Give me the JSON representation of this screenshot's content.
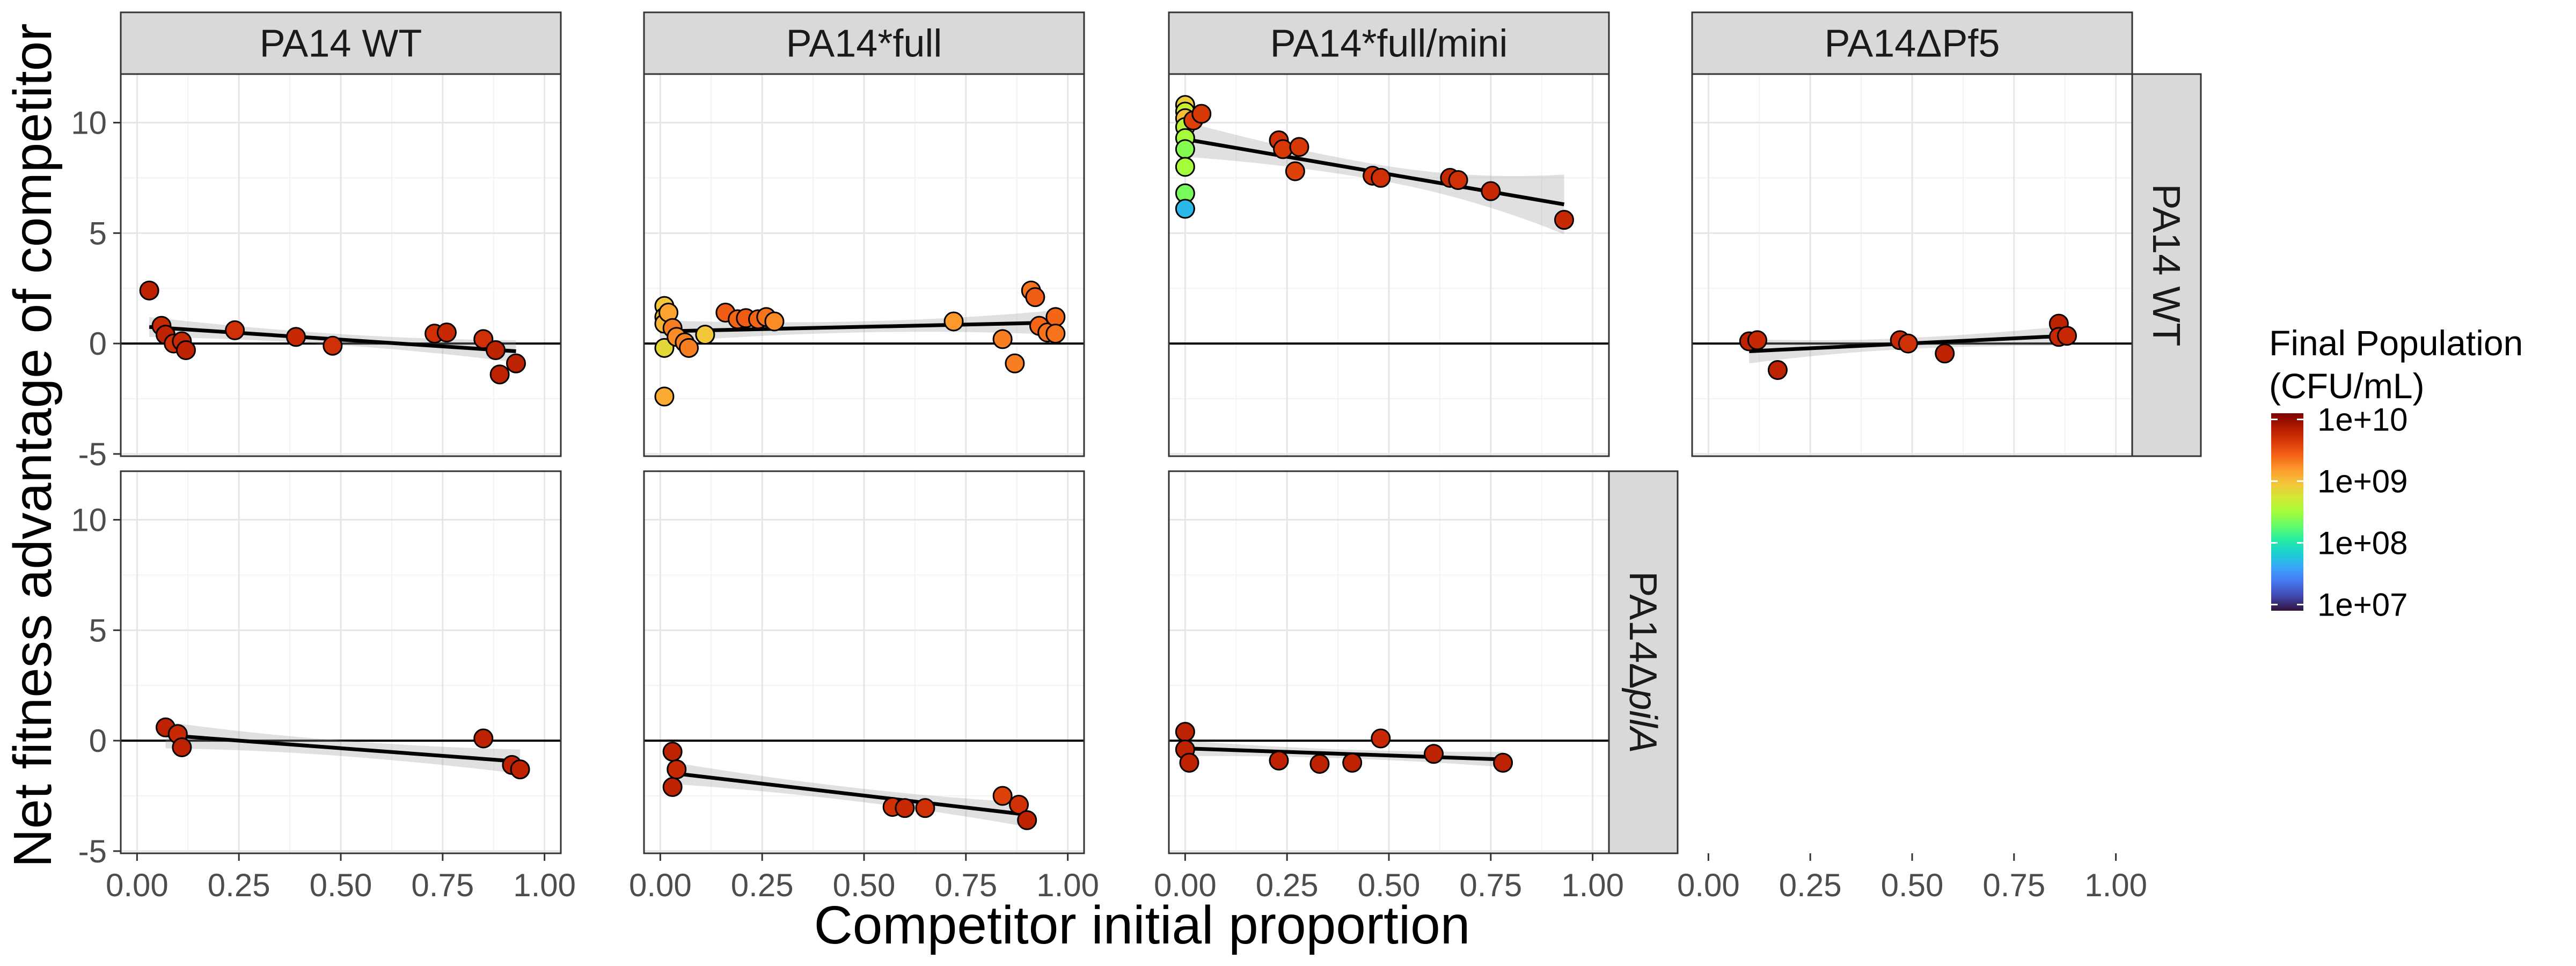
{
  "chart_data": {
    "type": "scatter",
    "facets": {
      "columns": [
        "PA14 WT",
        "PA14*full",
        "PA14*full/mini",
        "PA14ΔPf5"
      ],
      "rows": [
        {
          "plain": "PA14 Δ",
          "italic": "pilA",
          "key": "PA14 WT"
        },
        {
          "plain": "PA14Δ",
          "italic": "pilA",
          "key": "PA14ΔpilA"
        }
      ],
      "row_labels": [
        "PA14 WT",
        "PA14ΔpilA"
      ]
    },
    "xlabel": "Competitor initial proportion",
    "ylabel": "Net fitness advantage of competitor",
    "xlim": [
      -0.04,
      1.04
    ],
    "ylim": [
      -5.1,
      12.2
    ],
    "x_ticks": [
      0.0,
      0.25,
      0.5,
      0.75,
      1.0
    ],
    "x_tick_labels": [
      "0.00",
      "0.25",
      "0.50",
      "0.75",
      "1.00"
    ],
    "y_ticks": [
      -5,
      0,
      5,
      10
    ],
    "y_tick_labels": [
      "-5",
      "0",
      "5",
      "10"
    ],
    "grid": true,
    "reference_line_y": 0,
    "legend": {
      "title_lines": [
        "Final Population",
        "(CFU/mL)"
      ],
      "labels": [
        "1e+10",
        "1e+09",
        "1e+08",
        "1e+07"
      ],
      "log_range": [
        6.9,
        10.1
      ],
      "placement": "right",
      "colors": [
        "#30123b",
        "#4145ab",
        "#4675ed",
        "#39a2fc",
        "#1bcfd4",
        "#24eca6",
        "#61fc6c",
        "#a4fc3b",
        "#d1e834",
        "#f3c63a",
        "#fe9b2d",
        "#f36315",
        "#d93806",
        "#b11901",
        "#7a0402"
      ]
    },
    "panels": [
      {
        "row": 0,
        "col": 0,
        "fit": {
          "x": [
            0.03,
            0.93
          ],
          "y": [
            0.75,
            -0.35
          ],
          "band": [
            0.45,
            0.25,
            0.5
          ]
        },
        "points": [
          {
            "x": 0.03,
            "y": 2.4,
            "p": 9.8
          },
          {
            "x": 0.06,
            "y": 0.8,
            "p": 9.75
          },
          {
            "x": 0.07,
            "y": 0.4,
            "p": 9.8
          },
          {
            "x": 0.09,
            "y": 0.0,
            "p": 9.7
          },
          {
            "x": 0.11,
            "y": 0.1,
            "p": 9.75
          },
          {
            "x": 0.12,
            "y": -0.3,
            "p": 9.8
          },
          {
            "x": 0.24,
            "y": 0.6,
            "p": 9.7
          },
          {
            "x": 0.39,
            "y": 0.3,
            "p": 9.75
          },
          {
            "x": 0.48,
            "y": -0.1,
            "p": 9.7
          },
          {
            "x": 0.73,
            "y": 0.45,
            "p": 9.7
          },
          {
            "x": 0.76,
            "y": 0.5,
            "p": 9.75
          },
          {
            "x": 0.85,
            "y": 0.2,
            "p": 9.7
          },
          {
            "x": 0.88,
            "y": -0.3,
            "p": 9.8
          },
          {
            "x": 0.89,
            "y": -1.4,
            "p": 9.8
          },
          {
            "x": 0.93,
            "y": -0.9,
            "p": 9.8
          }
        ]
      },
      {
        "row": 0,
        "col": 1,
        "fit": {
          "x": [
            0.0,
            0.97
          ],
          "y": [
            0.55,
            0.95
          ],
          "band": [
            0.5,
            0.25,
            0.55
          ]
        },
        "points": [
          {
            "x": 0.01,
            "y": 1.7,
            "p": 8.95
          },
          {
            "x": 0.01,
            "y": 1.2,
            "p": 9.0
          },
          {
            "x": 0.01,
            "y": 0.9,
            "p": 9.05
          },
          {
            "x": 0.01,
            "y": -0.2,
            "p": 8.85
          },
          {
            "x": 0.01,
            "y": -2.4,
            "p": 9.1
          },
          {
            "x": 0.02,
            "y": 1.4,
            "p": 9.15
          },
          {
            "x": 0.03,
            "y": 0.7,
            "p": 9.3
          },
          {
            "x": 0.04,
            "y": 0.3,
            "p": 9.25
          },
          {
            "x": 0.06,
            "y": 0.05,
            "p": 9.3
          },
          {
            "x": 0.07,
            "y": -0.2,
            "p": 9.3
          },
          {
            "x": 0.11,
            "y": 0.4,
            "p": 8.95
          },
          {
            "x": 0.16,
            "y": 1.4,
            "p": 9.45
          },
          {
            "x": 0.19,
            "y": 1.1,
            "p": 9.4
          },
          {
            "x": 0.21,
            "y": 1.15,
            "p": 9.45
          },
          {
            "x": 0.24,
            "y": 1.1,
            "p": 9.4
          },
          {
            "x": 0.26,
            "y": 1.2,
            "p": 9.35
          },
          {
            "x": 0.28,
            "y": 1.0,
            "p": 9.25
          },
          {
            "x": 0.72,
            "y": 1.0,
            "p": 9.2
          },
          {
            "x": 0.84,
            "y": 0.2,
            "p": 9.3
          },
          {
            "x": 0.87,
            "y": -0.9,
            "p": 9.3
          },
          {
            "x": 0.91,
            "y": 2.4,
            "p": 9.35
          },
          {
            "x": 0.92,
            "y": 2.1,
            "p": 9.45
          },
          {
            "x": 0.93,
            "y": 0.8,
            "p": 9.4
          },
          {
            "x": 0.95,
            "y": 0.5,
            "p": 9.35
          },
          {
            "x": 0.97,
            "y": 1.2,
            "p": 9.4
          },
          {
            "x": 0.97,
            "y": 0.45,
            "p": 9.35
          }
        ]
      },
      {
        "row": 0,
        "col": 2,
        "fit": {
          "x": [
            0.0,
            0.93
          ],
          "y": [
            9.25,
            6.3
          ],
          "band": [
            0.8,
            0.35,
            1.35
          ]
        },
        "points": [
          {
            "x": 0.0,
            "y": 10.8,
            "p": 8.9
          },
          {
            "x": 0.0,
            "y": 10.5,
            "p": 8.7
          },
          {
            "x": 0.0,
            "y": 10.2,
            "p": 9.0
          },
          {
            "x": 0.0,
            "y": 9.8,
            "p": 8.6
          },
          {
            "x": 0.0,
            "y": 9.3,
            "p": 8.5
          },
          {
            "x": 0.0,
            "y": 8.8,
            "p": 8.4
          },
          {
            "x": 0.0,
            "y": 8.0,
            "p": 8.5
          },
          {
            "x": 0.0,
            "y": 6.8,
            "p": 8.35
          },
          {
            "x": 0.0,
            "y": 6.1,
            "p": 7.7
          },
          {
            "x": 0.02,
            "y": 10.1,
            "p": 9.6
          },
          {
            "x": 0.04,
            "y": 10.4,
            "p": 9.65
          },
          {
            "x": 0.23,
            "y": 9.2,
            "p": 9.7
          },
          {
            "x": 0.24,
            "y": 8.8,
            "p": 9.65
          },
          {
            "x": 0.27,
            "y": 7.8,
            "p": 9.6
          },
          {
            "x": 0.28,
            "y": 8.9,
            "p": 9.65
          },
          {
            "x": 0.46,
            "y": 7.6,
            "p": 9.7
          },
          {
            "x": 0.48,
            "y": 7.5,
            "p": 9.7
          },
          {
            "x": 0.65,
            "y": 7.5,
            "p": 9.75
          },
          {
            "x": 0.67,
            "y": 7.4,
            "p": 9.7
          },
          {
            "x": 0.75,
            "y": 6.9,
            "p": 9.75
          },
          {
            "x": 0.93,
            "y": 5.6,
            "p": 9.75
          }
        ]
      },
      {
        "row": 0,
        "col": 3,
        "fit": {
          "x": [
            0.1,
            0.88
          ],
          "y": [
            -0.35,
            0.35
          ],
          "band": [
            0.55,
            0.25,
            0.45
          ]
        },
        "points": [
          {
            "x": 0.1,
            "y": 0.1,
            "p": 9.8
          },
          {
            "x": 0.12,
            "y": 0.15,
            "p": 9.75
          },
          {
            "x": 0.17,
            "y": -1.2,
            "p": 9.8
          },
          {
            "x": 0.47,
            "y": 0.15,
            "p": 9.75
          },
          {
            "x": 0.49,
            "y": 0.0,
            "p": 9.7
          },
          {
            "x": 0.58,
            "y": -0.45,
            "p": 9.8
          },
          {
            "x": 0.86,
            "y": 0.9,
            "p": 9.8
          },
          {
            "x": 0.86,
            "y": 0.3,
            "p": 9.75
          },
          {
            "x": 0.88,
            "y": 0.35,
            "p": 9.75
          }
        ]
      },
      {
        "row": 1,
        "col": 0,
        "fit": {
          "x": [
            0.07,
            0.94
          ],
          "y": [
            0.25,
            -0.95
          ],
          "band": [
            0.6,
            0.35,
            0.55
          ]
        },
        "points": [
          {
            "x": 0.07,
            "y": 0.6,
            "p": 9.8
          },
          {
            "x": 0.1,
            "y": 0.3,
            "p": 9.75
          },
          {
            "x": 0.11,
            "y": -0.3,
            "p": 9.8
          },
          {
            "x": 0.85,
            "y": 0.1,
            "p": 9.8
          },
          {
            "x": 0.92,
            "y": -1.1,
            "p": 9.8
          },
          {
            "x": 0.94,
            "y": -1.3,
            "p": 9.8
          }
        ]
      },
      {
        "row": 1,
        "col": 1,
        "fit": {
          "x": [
            0.02,
            0.9
          ],
          "y": [
            -1.45,
            -3.35
          ],
          "band": [
            0.5,
            0.3,
            0.55
          ]
        },
        "points": [
          {
            "x": 0.03,
            "y": -0.5,
            "p": 9.8
          },
          {
            "x": 0.03,
            "y": -2.1,
            "p": 9.8
          },
          {
            "x": 0.04,
            "y": -1.3,
            "p": 9.75
          },
          {
            "x": 0.57,
            "y": -3.0,
            "p": 9.7
          },
          {
            "x": 0.6,
            "y": -3.05,
            "p": 9.75
          },
          {
            "x": 0.65,
            "y": -3.05,
            "p": 9.7
          },
          {
            "x": 0.84,
            "y": -2.5,
            "p": 9.6
          },
          {
            "x": 0.88,
            "y": -2.9,
            "p": 9.7
          },
          {
            "x": 0.9,
            "y": -3.6,
            "p": 9.8
          }
        ]
      },
      {
        "row": 1,
        "col": 2,
        "fit": {
          "x": [
            0.0,
            0.78
          ],
          "y": [
            -0.35,
            -0.85
          ],
          "band": [
            0.35,
            0.2,
            0.35
          ]
        },
        "points": [
          {
            "x": 0.0,
            "y": 0.4,
            "p": 9.8
          },
          {
            "x": 0.0,
            "y": -0.4,
            "p": 9.8
          },
          {
            "x": 0.01,
            "y": -1.0,
            "p": 9.8
          },
          {
            "x": 0.23,
            "y": -0.9,
            "p": 9.8
          },
          {
            "x": 0.33,
            "y": -1.05,
            "p": 9.8
          },
          {
            "x": 0.41,
            "y": -1.0,
            "p": 9.8
          },
          {
            "x": 0.48,
            "y": 0.1,
            "p": 9.75
          },
          {
            "x": 0.61,
            "y": -0.6,
            "p": 9.8
          },
          {
            "x": 0.78,
            "y": -1.0,
            "p": 9.8
          }
        ]
      }
    ]
  }
}
